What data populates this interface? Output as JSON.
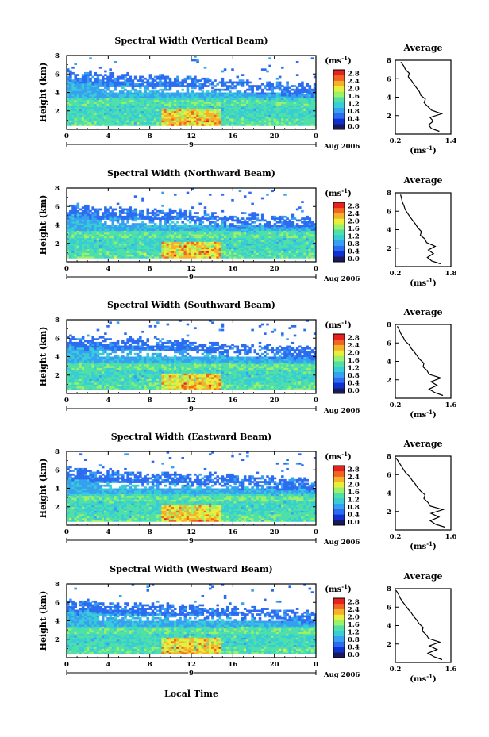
{
  "figure": {
    "xlabel": "Local Time",
    "colors": [
      "#1a1a5a",
      "#1030d0",
      "#2c6cf0",
      "#37a0f0",
      "#38ccd6",
      "#4fe0a8",
      "#9cf06a",
      "#e8ee3c",
      "#f6b02a",
      "#f26424",
      "#e6221f"
    ],
    "panels": [
      {
        "title": "Spectral Width (Vertical Beam)",
        "chart_data": {
          "type": "heatmap",
          "title": "Spectral Width (Vertical Beam)",
          "xlabel": "",
          "ylabel": "Height (km)",
          "xlim": [
            0,
            24
          ],
          "ylim": [
            0,
            8
          ],
          "xticks": [
            "0",
            "4",
            "8",
            "12",
            "16",
            "20",
            "0"
          ],
          "yticks": [
            "2",
            "4",
            "6",
            "8"
          ],
          "date_label": "9",
          "month_label": "Aug 2006",
          "colorbar": {
            "unit": "(ms",
            "unit_sup": "-1",
            "unit_close": ")",
            "ticks": [
              "0.0",
              "0.4",
              "0.8",
              "1.2",
              "1.6",
              "2.0",
              "2.4",
              "2.8"
            ],
            "range": [
              0,
              3.0
            ]
          },
          "top_height_km": [
            6.5,
            6.2,
            6.4,
            6.1,
            6.0,
            5.9,
            6.0,
            5.8,
            5.7,
            5.9,
            5.7,
            5.6,
            5.8,
            5.5,
            5.4,
            5.3,
            5.2,
            5.3,
            5.2,
            5.0,
            5.1,
            4.9,
            5.0,
            4.9,
            4.8
          ]
        },
        "average": {
          "title": "Average",
          "xlabel": "(ms",
          "xlabel_sup": "-1",
          "xlabel_close": ")",
          "xticks": [
            "0.2",
            "1.4"
          ],
          "xlim": [
            0.2,
            1.4
          ],
          "yticks": [
            "2",
            "4",
            "6",
            "8"
          ],
          "ylim": [
            0,
            8
          ],
          "height_km": [
            0.3,
            0.6,
            1.0,
            1.4,
            1.8,
            2.2,
            2.6,
            3.0,
            3.4,
            3.8,
            4.2,
            4.6,
            5.0,
            5.4,
            5.8,
            6.2,
            6.6,
            7.0,
            7.4,
            7.8
          ],
          "width_ms": [
            1.15,
            0.98,
            0.92,
            1.02,
            0.95,
            1.2,
            0.98,
            0.9,
            0.82,
            0.85,
            0.75,
            0.72,
            0.66,
            0.6,
            0.55,
            0.48,
            0.5,
            0.42,
            0.38,
            0.32
          ]
        }
      },
      {
        "title": "Spectral Width (Northward Beam)",
        "chart_data": {
          "type": "heatmap",
          "title": "Spectral Width (Northward Beam)",
          "xlabel": "",
          "ylabel": "Height (km)",
          "xlim": [
            0,
            24
          ],
          "ylim": [
            0,
            8
          ],
          "xticks": [
            "0",
            "4",
            "8",
            "12",
            "16",
            "20",
            "0"
          ],
          "yticks": [
            "2",
            "4",
            "6",
            "8"
          ],
          "date_label": "9",
          "month_label": "Aug 2006",
          "colorbar": {
            "unit": "(ms",
            "unit_sup": "-1",
            "unit_close": ")",
            "ticks": [
              "0.0",
              "0.4",
              "0.8",
              "1.2",
              "1.6",
              "2.0",
              "2.4",
              "2.8"
            ],
            "range": [
              0,
              3.0
            ]
          },
          "top_height_km": [
            6.0,
            6.2,
            6.1,
            5.8,
            5.9,
            5.7,
            5.8,
            5.6,
            5.7,
            5.6,
            5.5,
            5.6,
            5.4,
            5.3,
            5.2,
            5.3,
            5.1,
            5.0,
            5.2,
            5.0,
            4.9,
            5.0,
            4.8,
            4.8,
            4.7
          ]
        },
        "average": {
          "title": "Average",
          "xlabel": "(ms",
          "xlabel_sup": "-1",
          "xlabel_close": ")",
          "xticks": [
            "0.2",
            "1.8"
          ],
          "xlim": [
            0.2,
            1.8
          ],
          "yticks": [
            "2",
            "4",
            "6",
            "8"
          ],
          "ylim": [
            0,
            8
          ],
          "height_km": [
            0.3,
            0.6,
            1.0,
            1.4,
            1.8,
            2.2,
            2.6,
            3.0,
            3.4,
            3.8,
            4.2,
            4.6,
            5.0,
            5.4,
            5.8,
            6.2,
            6.6,
            7.0,
            7.4,
            7.8
          ],
          "width_ms": [
            1.5,
            1.25,
            1.12,
            1.3,
            1.15,
            1.35,
            1.1,
            1.05,
            0.92,
            0.95,
            0.85,
            0.78,
            0.7,
            0.62,
            0.55,
            0.48,
            0.45,
            0.4,
            0.38,
            0.35
          ]
        }
      },
      {
        "title": "Spectral Width (Southward Beam)",
        "chart_data": {
          "type": "heatmap",
          "title": "Spectral Width (Southward Beam)",
          "xlabel": "",
          "ylabel": "Height (km)",
          "xlim": [
            0,
            24
          ],
          "ylim": [
            0,
            8
          ],
          "xticks": [
            "0",
            "4",
            "8",
            "12",
            "16",
            "20",
            "0"
          ],
          "yticks": [
            "2",
            "4",
            "6",
            "8"
          ],
          "date_label": "9",
          "month_label": "Aug 2006",
          "colorbar": {
            "unit": "(ms",
            "unit_sup": "-1",
            "unit_close": ")",
            "ticks": [
              "0.0",
              "0.4",
              "0.8",
              "1.2",
              "1.6",
              "2.0",
              "2.4",
              "2.8"
            ],
            "range": [
              0,
              3.0
            ]
          },
          "top_height_km": [
            6.1,
            6.3,
            6.0,
            6.1,
            5.9,
            6.0,
            5.8,
            5.9,
            5.7,
            5.8,
            5.6,
            5.7,
            5.5,
            5.6,
            5.5,
            5.4,
            5.3,
            5.4,
            5.2,
            5.3,
            5.1,
            5.2,
            5.0,
            5.1,
            5.0
          ]
        },
        "average": {
          "title": "Average",
          "xlabel": "(ms",
          "xlabel_sup": "-1",
          "xlabel_close": ")",
          "xticks": [
            "0.2",
            "1.6"
          ],
          "xlim": [
            0.2,
            1.6
          ],
          "yticks": [
            "2",
            "4",
            "6",
            "8"
          ],
          "ylim": [
            0,
            8
          ],
          "height_km": [
            0.3,
            0.6,
            1.0,
            1.4,
            1.8,
            2.2,
            2.6,
            3.0,
            3.4,
            3.8,
            4.2,
            4.6,
            5.0,
            5.4,
            5.8,
            6.2,
            6.6,
            7.0,
            7.4,
            7.8
          ],
          "width_ms": [
            1.4,
            1.2,
            1.05,
            1.25,
            1.1,
            1.35,
            1.05,
            1.0,
            0.9,
            0.92,
            0.82,
            0.75,
            0.68,
            0.6,
            0.55,
            0.45,
            0.4,
            0.34,
            0.3,
            0.25
          ]
        }
      },
      {
        "title": "Spectral Width (Eastward Beam)",
        "chart_data": {
          "type": "heatmap",
          "title": "Spectral Width (Eastward Beam)",
          "xlabel": "",
          "ylabel": "Height (km)",
          "xlim": [
            0,
            24
          ],
          "ylim": [
            0,
            8
          ],
          "xticks": [
            "0",
            "4",
            "8",
            "12",
            "16",
            "20",
            "0"
          ],
          "yticks": [
            "2",
            "4",
            "6",
            "8"
          ],
          "date_label": "9",
          "month_label": "Aug 2006",
          "colorbar": {
            "unit": "(ms",
            "unit_sup": "-1",
            "unit_close": ")",
            "ticks": [
              "0.0",
              "0.4",
              "0.8",
              "1.2",
              "1.6",
              "2.0",
              "2.4",
              "2.8"
            ],
            "range": [
              0,
              3.0
            ]
          },
          "top_height_km": [
            6.3,
            6.0,
            6.2,
            5.9,
            6.0,
            5.8,
            5.9,
            5.7,
            5.8,
            5.6,
            5.7,
            5.5,
            5.6,
            5.4,
            5.5,
            5.3,
            5.4,
            5.2,
            5.3,
            5.1,
            5.2,
            5.0,
            5.1,
            4.9,
            5.0
          ]
        },
        "average": {
          "title": "Average",
          "xlabel": "(ms",
          "xlabel_sup": "-1",
          "xlabel_close": ")",
          "xticks": [
            "0.2",
            "1.6"
          ],
          "xlim": [
            0.2,
            1.6
          ],
          "yticks": [
            "2",
            "4",
            "6",
            "8"
          ],
          "ylim": [
            0,
            8
          ],
          "height_km": [
            0.3,
            0.6,
            1.0,
            1.4,
            1.8,
            2.2,
            2.6,
            3.0,
            3.4,
            3.8,
            4.2,
            4.6,
            5.0,
            5.4,
            5.8,
            6.2,
            6.6,
            7.0,
            7.4,
            7.8
          ],
          "width_ms": [
            1.45,
            1.22,
            1.08,
            1.3,
            1.1,
            1.4,
            1.08,
            1.02,
            0.92,
            0.95,
            0.84,
            0.76,
            0.7,
            0.62,
            0.56,
            0.46,
            0.4,
            0.34,
            0.28,
            0.22
          ]
        }
      },
      {
        "title": "Spectral Width (Westward Beam)",
        "chart_data": {
          "type": "heatmap",
          "title": "Spectral Width (Westward Beam)",
          "xlabel": "Local Time",
          "ylabel": "Height (km)",
          "xlim": [
            0,
            24
          ],
          "ylim": [
            0,
            8
          ],
          "xticks": [
            "0",
            "4",
            "8",
            "12",
            "16",
            "20",
            "0"
          ],
          "yticks": [
            "2",
            "4",
            "6",
            "8"
          ],
          "date_label": "9",
          "month_label": "Aug 2006",
          "colorbar": {
            "unit": "(ms",
            "unit_sup": "-1",
            "unit_close": ")",
            "ticks": [
              "0.0",
              "0.4",
              "0.8",
              "1.2",
              "1.6",
              "2.0",
              "2.4",
              "2.8"
            ],
            "range": [
              0,
              3.0
            ]
          },
          "top_height_km": [
            6.4,
            6.1,
            6.3,
            6.0,
            6.1,
            5.9,
            6.0,
            5.8,
            5.9,
            5.7,
            5.8,
            5.6,
            5.7,
            5.5,
            5.6,
            5.4,
            5.5,
            5.3,
            5.4,
            5.2,
            5.3,
            5.1,
            5.2,
            5.0,
            5.1
          ]
        },
        "average": {
          "title": "Average",
          "xlabel": "(ms",
          "xlabel_sup": "-1",
          "xlabel_close": ")",
          "xticks": [
            "0.2",
            "1.6"
          ],
          "xlim": [
            0.2,
            1.6
          ],
          "yticks": [
            "2",
            "4",
            "6",
            "8"
          ],
          "ylim": [
            0,
            8
          ],
          "height_km": [
            0.3,
            0.6,
            1.0,
            1.4,
            1.8,
            2.2,
            2.6,
            3.0,
            3.4,
            3.8,
            4.2,
            4.6,
            5.0,
            5.4,
            5.8,
            6.2,
            6.6,
            7.0,
            7.4,
            7.8
          ],
          "width_ms": [
            1.38,
            1.18,
            1.02,
            1.25,
            1.06,
            1.32,
            1.04,
            0.98,
            0.88,
            0.9,
            0.8,
            0.74,
            0.66,
            0.6,
            0.52,
            0.45,
            0.38,
            0.32,
            0.28,
            0.22
          ]
        }
      }
    ]
  }
}
